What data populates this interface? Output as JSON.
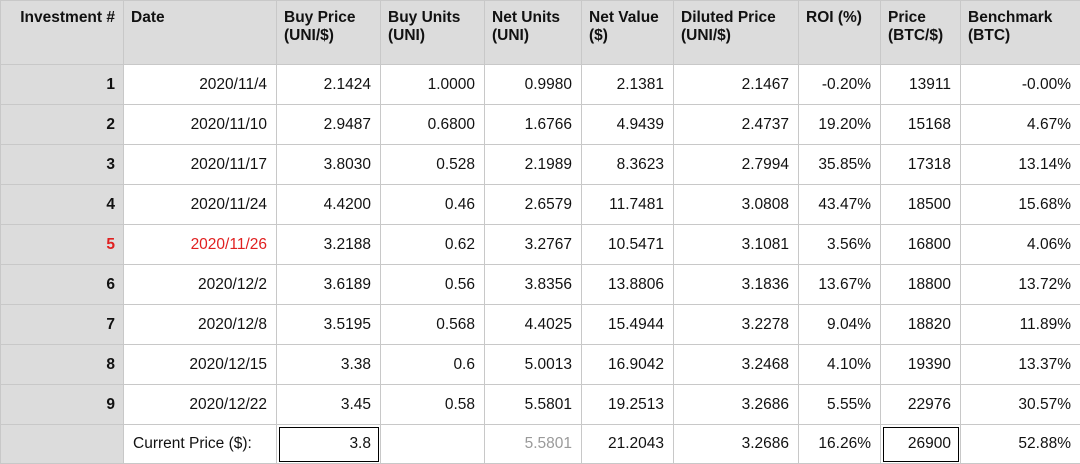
{
  "headers": [
    {
      "line1": "Investment #",
      "line2": ""
    },
    {
      "line1": "Date",
      "line2": ""
    },
    {
      "line1": "Buy Price",
      "line2": "(UNI/$)"
    },
    {
      "line1": "Buy Units",
      "line2": "(UNI)"
    },
    {
      "line1": "Net Units",
      "line2": "(UNI)"
    },
    {
      "line1": "Net Value",
      "line2": "($)"
    },
    {
      "line1": "Diluted Price",
      "line2": "(UNI/$)"
    },
    {
      "line1": "ROI (%)",
      "line2": ""
    },
    {
      "line1": "Price",
      "line2": "(BTC/$)"
    },
    {
      "line1": "Benchmark",
      "line2": "(BTC)"
    }
  ],
  "rows": [
    {
      "idx": "1",
      "date": "2020/11/4",
      "buy_price": "2.1424",
      "buy_units": "1.0000",
      "net_units": "0.9980",
      "net_value": "2.1381",
      "diluted_price": "2.1467",
      "roi": "-0.20%",
      "btc_price": "13911",
      "benchmark": "-0.00%",
      "highlight": false
    },
    {
      "idx": "2",
      "date": "2020/11/10",
      "buy_price": "2.9487",
      "buy_units": "0.6800",
      "net_units": "1.6766",
      "net_value": "4.9439",
      "diluted_price": "2.4737",
      "roi": "19.20%",
      "btc_price": "15168",
      "benchmark": "4.67%",
      "highlight": false
    },
    {
      "idx": "3",
      "date": "2020/11/17",
      "buy_price": "3.8030",
      "buy_units": "0.528",
      "net_units": "2.1989",
      "net_value": "8.3623",
      "diluted_price": "2.7994",
      "roi": "35.85%",
      "btc_price": "17318",
      "benchmark": "13.14%",
      "highlight": false
    },
    {
      "idx": "4",
      "date": "2020/11/24",
      "buy_price": "4.4200",
      "buy_units": "0.46",
      "net_units": "2.6579",
      "net_value": "11.7481",
      "diluted_price": "3.0808",
      "roi": "43.47%",
      "btc_price": "18500",
      "benchmark": "15.68%",
      "highlight": false
    },
    {
      "idx": "5",
      "date": "2020/11/26",
      "buy_price": "3.2188",
      "buy_units": "0.62",
      "net_units": "3.2767",
      "net_value": "10.5471",
      "diluted_price": "3.1081",
      "roi": "3.56%",
      "btc_price": "16800",
      "benchmark": "4.06%",
      "highlight": true
    },
    {
      "idx": "6",
      "date": "2020/12/2",
      "buy_price": "3.6189",
      "buy_units": "0.56",
      "net_units": "3.8356",
      "net_value": "13.8806",
      "diluted_price": "3.1836",
      "roi": "13.67%",
      "btc_price": "18800",
      "benchmark": "13.72%",
      "highlight": false
    },
    {
      "idx": "7",
      "date": "2020/12/8",
      "buy_price": "3.5195",
      "buy_units": "0.568",
      "net_units": "4.4025",
      "net_value": "15.4944",
      "diluted_price": "3.2278",
      "roi": "9.04%",
      "btc_price": "18820",
      "benchmark": "11.89%",
      "highlight": false
    },
    {
      "idx": "8",
      "date": "2020/12/15",
      "buy_price": "3.38",
      "buy_units": "0.6",
      "net_units": "5.0013",
      "net_value": "16.9042",
      "diluted_price": "3.2468",
      "roi": "4.10%",
      "btc_price": "19390",
      "benchmark": "13.37%",
      "highlight": false
    },
    {
      "idx": "9",
      "date": "2020/12/22",
      "buy_price": "3.45",
      "buy_units": "0.58",
      "net_units": "5.5801",
      "net_value": "19.2513",
      "diluted_price": "3.2686",
      "roi": "5.55%",
      "btc_price": "22976",
      "benchmark": "30.57%",
      "highlight": false
    }
  ],
  "current": {
    "label": "Current Price ($):",
    "buy_price": "3.8",
    "net_units": "5.5801",
    "net_value": "21.2043",
    "diluted_price": "3.2686",
    "roi": "16.26%",
    "btc_price": "26900",
    "benchmark": "52.88%"
  },
  "colors": {
    "header_bg": "#dcdcdc",
    "highlight_text": "#e02020",
    "muted_text": "#9a9a9a"
  }
}
